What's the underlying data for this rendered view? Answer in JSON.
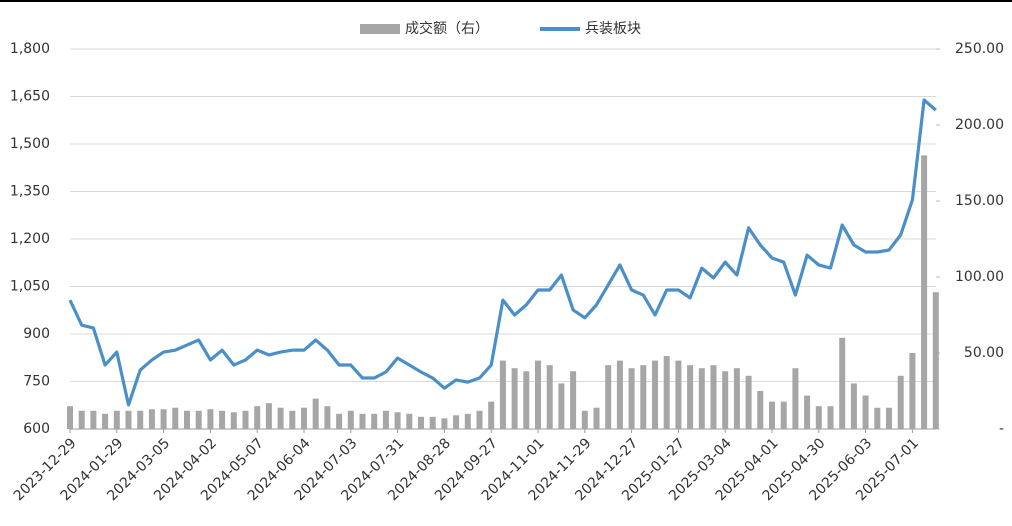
{
  "chart_data": {
    "type": "bar-line",
    "categories": [
      "2023-12-29",
      null,
      null,
      null,
      "2024-01-29",
      null,
      null,
      null,
      "2024-03-05",
      null,
      null,
      null,
      "2024-04-02",
      null,
      null,
      null,
      "2024-05-07",
      null,
      null,
      null,
      "2024-06-04",
      null,
      null,
      null,
      "2024-07-03",
      null,
      null,
      null,
      "2024-07-31",
      null,
      null,
      null,
      "2024-08-28",
      null,
      null,
      null,
      "2024-09-27",
      null,
      null,
      null,
      "2024-11-01",
      null,
      null,
      null,
      "2024-11-29",
      null,
      null,
      null,
      "2024-12-27",
      null,
      null,
      null,
      "2025-01-27",
      null,
      null,
      null,
      "2025-03-04",
      null,
      null,
      null,
      "2025-04-01",
      null,
      null,
      null,
      "2025-04-30",
      null,
      null,
      null,
      "2025-06-03",
      null,
      null,
      null,
      "2025-07-01",
      null,
      null
    ],
    "series": [
      {
        "name": "成交额（右）",
        "type": "bar",
        "axis": "y2",
        "color": "#a6a6a6",
        "values": [
          15,
          12,
          12,
          10,
          12,
          12,
          12,
          13,
          13,
          14,
          12,
          12,
          13,
          12,
          11,
          12,
          15,
          17,
          14,
          12,
          14,
          20,
          15,
          10,
          12,
          10,
          10,
          12,
          11,
          10,
          8,
          8,
          7,
          9,
          10,
          12,
          18,
          45,
          40,
          38,
          45,
          42,
          30,
          38,
          12,
          14,
          42,
          45,
          40,
          42,
          45,
          48,
          45,
          42,
          40,
          42,
          38,
          40,
          35,
          25,
          18,
          18,
          40,
          22,
          15,
          15,
          60,
          30,
          22,
          14,
          14,
          35,
          50,
          180,
          90
        ]
      },
      {
        "name": "兵装板块",
        "type": "line",
        "axis": "y",
        "color": "#4a8fc8",
        "values": [
          1007,
          928,
          919,
          802,
          843,
          676,
          786,
          818,
          843,
          849,
          865,
          881,
          818,
          849,
          802,
          818,
          849,
          834,
          843,
          849,
          849,
          881,
          849,
          802,
          802,
          761,
          761,
          780,
          824,
          802,
          780,
          761,
          729,
          755,
          748,
          761,
          802,
          1007,
          960,
          992,
          1039,
          1039,
          1086,
          976,
          951,
          992,
          1055,
          1118,
          1039,
          1023,
          960,
          1039,
          1039,
          1014,
          1108,
          1077,
          1127,
          1086,
          1235,
          1181,
          1140,
          1127,
          1023,
          1149,
          1118,
          1108,
          1244,
          1181,
          1159,
          1159,
          1165,
          1213,
          1323,
          1639,
          1607
        ]
      }
    ],
    "ylim": [
      600,
      1800
    ],
    "yticks": [
      600,
      750,
      900,
      {
        "value": 1050,
        "label": "1,050"
      },
      {
        "value": 1200,
        "label": "1,200"
      },
      {
        "value": 1350,
        "label": "1,350"
      },
      {
        "value": 1500,
        "label": "1,500"
      },
      {
        "value": 1650,
        "label": "1,650"
      },
      {
        "value": 1800,
        "label": "1,800"
      }
    ],
    "y2lim": [
      0,
      250
    ],
    "y2ticks": [
      {
        "value": 0,
        "label": "-"
      },
      {
        "value": 50,
        "label": "50.00"
      },
      {
        "value": 100,
        "label": "100.00"
      },
      {
        "value": 150,
        "label": "150.00"
      },
      {
        "value": 200,
        "label": "200.00"
      },
      {
        "value": 250,
        "label": "250.00"
      }
    ],
    "grid": true
  }
}
